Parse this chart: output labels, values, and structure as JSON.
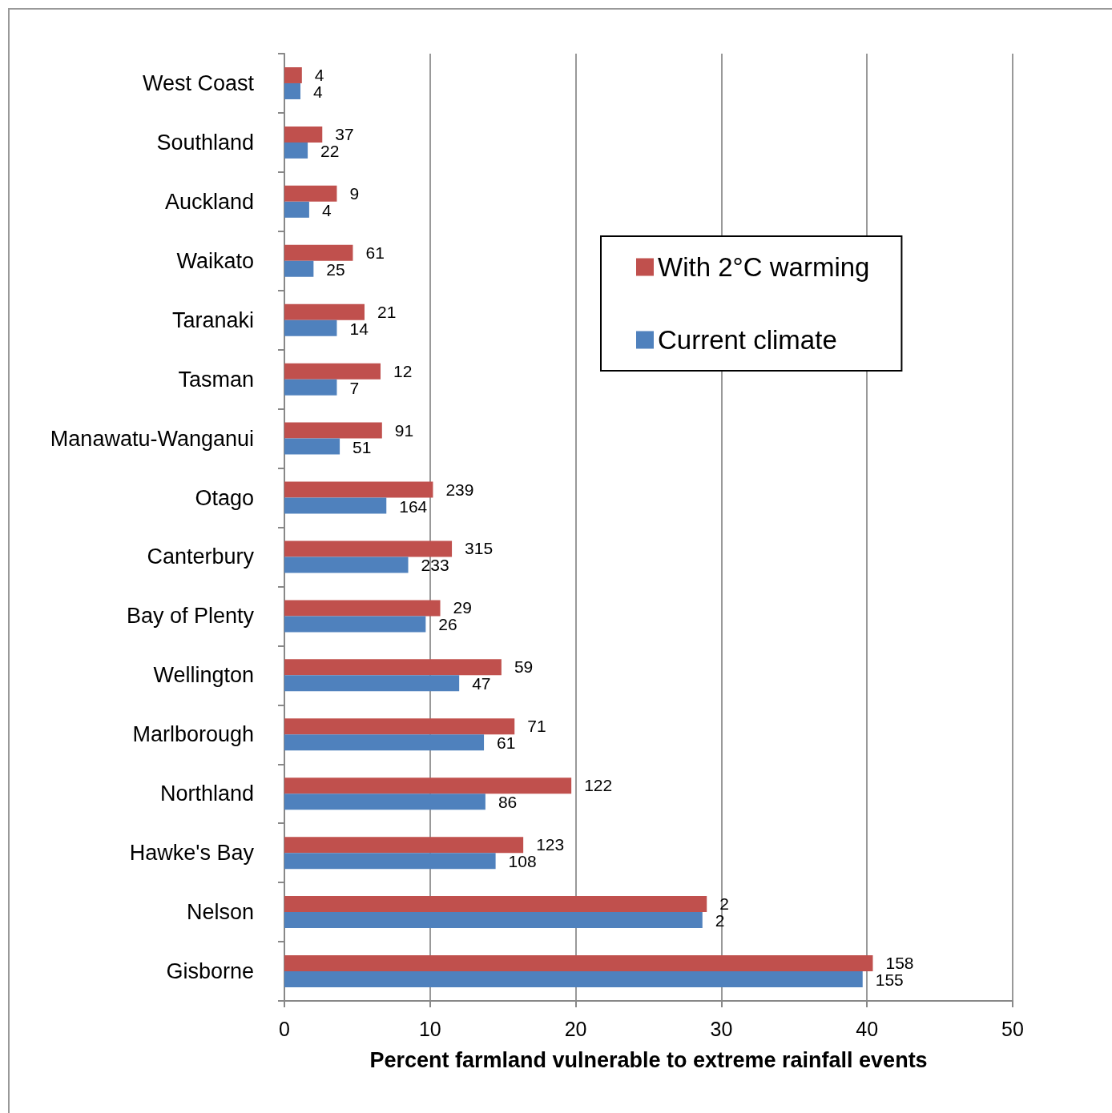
{
  "chart_data": {
    "type": "bar",
    "orientation": "horizontal",
    "xlabel": "Percent farmland vulnerable to extreme rainfall events",
    "categories": [
      "West Coast",
      "Southland",
      "Auckland",
      "Waikato",
      "Taranaki",
      "Tasman",
      "Manawatu-Wanganui",
      "Otago",
      "Canterbury",
      "Bay of Plenty",
      "Wellington",
      "Marlborough",
      "Northland",
      "Hawke's Bay",
      "Nelson",
      "Gisborne"
    ],
    "series": [
      {
        "name": "With 2°C warming",
        "color": "#c0504d",
        "values": [
          1.2,
          2.6,
          3.6,
          4.7,
          5.5,
          6.6,
          6.7,
          10.2,
          11.5,
          10.7,
          14.9,
          15.8,
          19.7,
          16.4,
          29.0,
          40.4
        ]
      },
      {
        "name": "Current climate",
        "color": "#4f81bd",
        "values": [
          1.1,
          1.6,
          1.7,
          2.0,
          3.6,
          3.6,
          3.8,
          7.0,
          8.5,
          9.7,
          12.0,
          13.7,
          13.8,
          14.5,
          28.7,
          39.7
        ]
      }
    ],
    "annotations": [
      {
        "text": "4",
        "x": 1.2,
        "y": "West Coast"
      },
      {
        "text": "4",
        "x": 1.1,
        "y": "West Coast"
      },
      {
        "text": "37",
        "x": 2.6,
        "y": "Southland"
      },
      {
        "text": "22",
        "x": 1.6,
        "y": "Southland"
      },
      {
        "text": "9",
        "x": 3.6,
        "y": "Auckland"
      },
      {
        "text": "4",
        "x": 1.7,
        "y": "Auckland"
      },
      {
        "text": "61",
        "x": 4.7,
        "y": "Waikato"
      },
      {
        "text": "25",
        "x": 2.0,
        "y": "Waikato"
      },
      {
        "text": "21",
        "x": 5.5,
        "y": "Taranaki"
      },
      {
        "text": "14",
        "x": 3.6,
        "y": "Taranaki"
      },
      {
        "text": "12",
        "x": 6.6,
        "y": "Tasman"
      },
      {
        "text": "7",
        "x": 3.6,
        "y": "Tasman"
      },
      {
        "text": "91",
        "x": 6.7,
        "y": "Manawatu-Wanganui"
      },
      {
        "text": "51",
        "x": 3.8,
        "y": "Manawatu-Wanganui"
      },
      {
        "text": "239",
        "x": 10.2,
        "y": "Otago"
      },
      {
        "text": "164",
        "x": 7.0,
        "y": "Otago"
      },
      {
        "text": "315",
        "x": 11.5,
        "y": "Canterbury"
      },
      {
        "text": "233",
        "x": 8.5,
        "y": "Canterbury"
      },
      {
        "text": "29",
        "x": 10.7,
        "y": "Bay of Plenty"
      },
      {
        "text": "26",
        "x": 9.7,
        "y": "Bay of Plenty"
      },
      {
        "text": "59",
        "x": 14.9,
        "y": "Wellington"
      },
      {
        "text": "47",
        "x": 12.0,
        "y": "Wellington"
      },
      {
        "text": "71",
        "x": 15.8,
        "y": "Marlborough"
      },
      {
        "text": "61",
        "x": 13.7,
        "y": "Marlborough"
      },
      {
        "text": "122",
        "x": 19.7,
        "y": "Northland"
      },
      {
        "text": "86",
        "x": 13.8,
        "y": "Northland"
      },
      {
        "text": "123",
        "x": 16.4,
        "y": "Hawke's Bay"
      },
      {
        "text": "108",
        "x": 14.5,
        "y": "Hawke's Bay"
      },
      {
        "text": "2",
        "x": 29.0,
        "y": "Nelson"
      },
      {
        "text": "2",
        "x": 28.7,
        "y": "Nelson"
      },
      {
        "text": "158",
        "x": 40.4,
        "y": "Gisborne"
      },
      {
        "text": "155",
        "x": 39.7,
        "y": "Gisborne"
      }
    ],
    "xlim": [
      0,
      50
    ],
    "xticks": [
      0,
      10,
      20,
      30,
      40,
      50
    ],
    "grid": "x",
    "legend": "top right"
  }
}
